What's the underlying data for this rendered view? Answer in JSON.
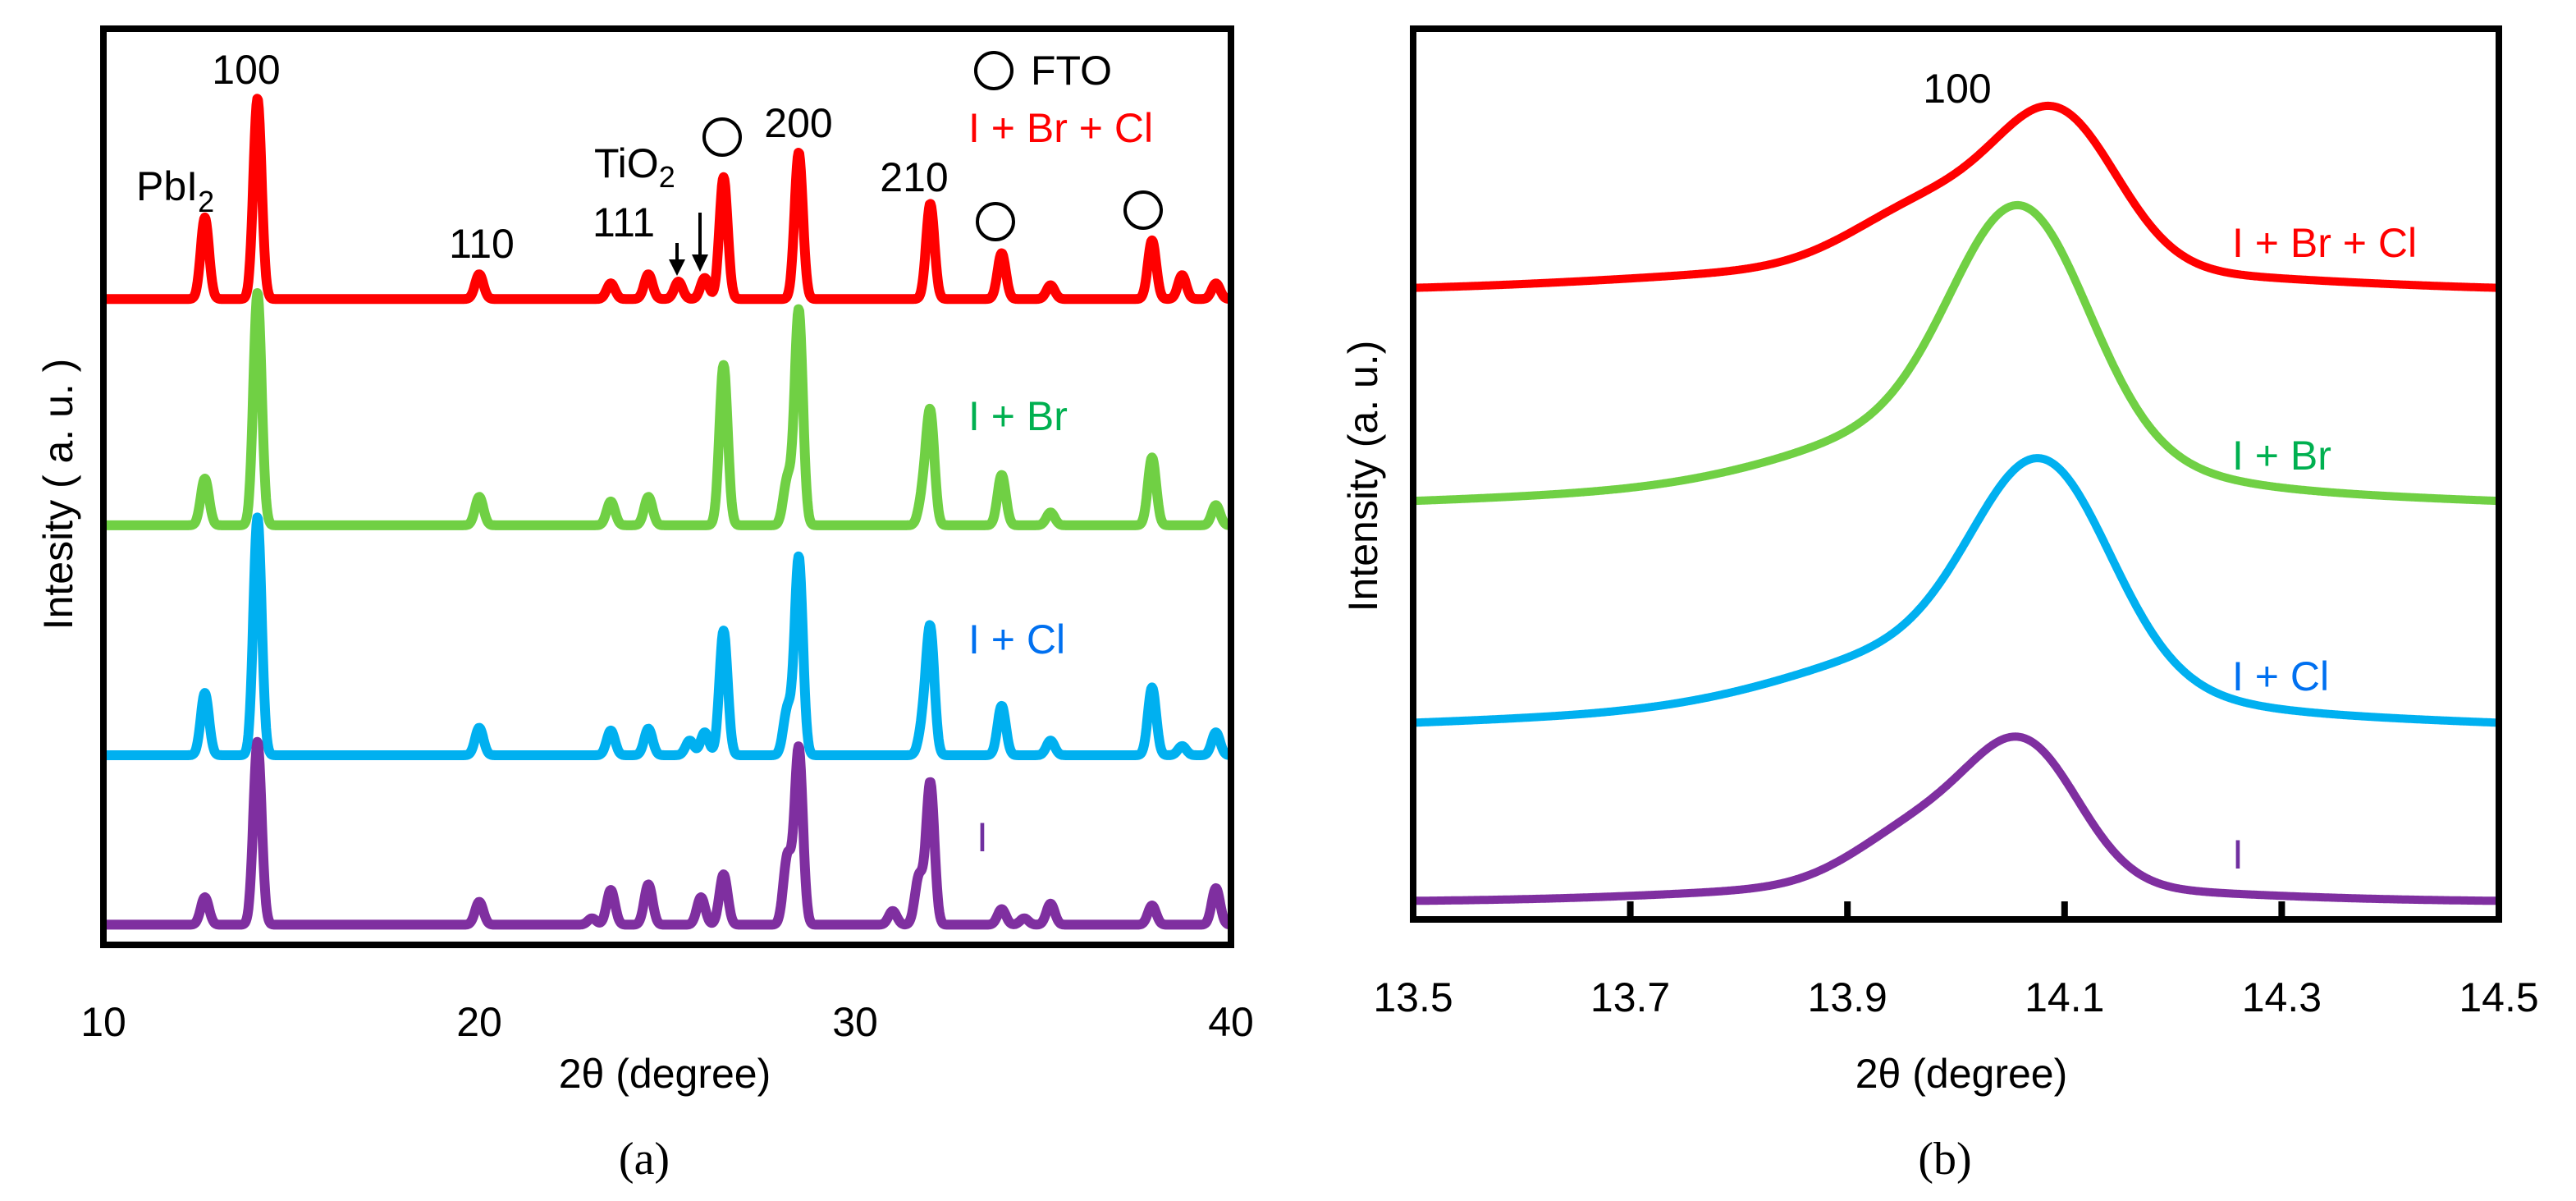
{
  "chart_data": [
    {
      "type": "line",
      "panel": "(a)",
      "xlabel": "2θ (degree)",
      "ylabel": "Intesity ( a. u. )",
      "xlim": [
        10,
        40
      ],
      "ylim": [
        0,
        100
      ],
      "xticks": [
        "10",
        "20",
        "30",
        "40"
      ],
      "grid": false,
      "annotations": {
        "pbi2": "PbI",
        "pbi2_sub": "2",
        "p100": "100",
        "p110": "110",
        "tio2": "TiO",
        "tio2_sub": "2",
        "p111": "111",
        "p200": "200",
        "p210": "210",
        "fto": "FTO"
      },
      "peak_width_deg": 0.11,
      "series": [
        {
          "name": "I + Br + Cl",
          "color": "#ff0000",
          "label_color": "#ff0000",
          "baseline": 70.5,
          "peaks": [
            [
              12.7,
              8.9
            ],
            [
              14.1,
              21.9
            ],
            [
              20.0,
              2.7
            ],
            [
              23.5,
              1.7
            ],
            [
              24.5,
              2.7
            ],
            [
              25.3,
              1.9
            ],
            [
              26.0,
              2.3
            ],
            [
              26.5,
              13.3
            ],
            [
              28.5,
              16
            ],
            [
              32.0,
              10.4
            ],
            [
              33.9,
              5
            ],
            [
              35.2,
              1.5
            ],
            [
              37.9,
              6.4
            ],
            [
              38.7,
              2.6
            ],
            [
              39.6,
              1.7
            ]
          ]
        },
        {
          "name": "I + Br",
          "color": "#70d044",
          "label_color": "#00b050",
          "baseline": 45.8,
          "peaks": [
            [
              12.7,
              5.1
            ],
            [
              14.1,
              25.4
            ],
            [
              20.0,
              3.1
            ],
            [
              23.5,
              2.6
            ],
            [
              24.5,
              3.1
            ],
            [
              26.5,
              17.5
            ],
            [
              28.2,
              5
            ],
            [
              28.5,
              23.5
            ],
            [
              31.8,
              3
            ],
            [
              32.0,
              12.1
            ],
            [
              33.9,
              5.5
            ],
            [
              35.2,
              1.4
            ],
            [
              37.9,
              7.4
            ],
            [
              39.6,
              2.2
            ]
          ]
        },
        {
          "name": "I + Cl",
          "color": "#00b0f0",
          "label_color": "#0070f0",
          "baseline": 20.7,
          "peaks": [
            [
              12.7,
              6.8
            ],
            [
              14.1,
              26
            ],
            [
              20.0,
              3
            ],
            [
              23.5,
              2.7
            ],
            [
              24.5,
              2.9
            ],
            [
              25.6,
              1.6
            ],
            [
              26.0,
              2.5
            ],
            [
              26.5,
              13.6
            ],
            [
              28.2,
              5
            ],
            [
              28.5,
              21.6
            ],
            [
              31.8,
              3
            ],
            [
              32.0,
              13.6
            ],
            [
              33.9,
              5.4
            ],
            [
              35.2,
              1.6
            ],
            [
              37.9,
              7.4
            ],
            [
              38.7,
              1
            ],
            [
              39.6,
              2.5
            ]
          ]
        },
        {
          "name": "I",
          "color": "#7f2fa0",
          "label_color": "#7030a0",
          "baseline": 2.2,
          "peaks": [
            [
              12.7,
              3
            ],
            [
              14.1,
              20
            ],
            [
              20.0,
              2.5
            ],
            [
              23.0,
              0.7
            ],
            [
              23.5,
              3.8
            ],
            [
              24.5,
              4.4
            ],
            [
              25.9,
              3
            ],
            [
              26.5,
              5.5
            ],
            [
              28.2,
              7.4
            ],
            [
              28.5,
              19.3
            ],
            [
              31.0,
              1.5
            ],
            [
              31.7,
              5.2
            ],
            [
              32.0,
              15.5
            ],
            [
              33.9,
              1.7
            ],
            [
              34.5,
              0.7
            ],
            [
              35.2,
              2.3
            ],
            [
              37.9,
              2.1
            ],
            [
              39.6,
              4
            ]
          ]
        }
      ]
    },
    {
      "type": "line",
      "panel": "(b)",
      "xlabel": "2θ (degree)",
      "ylabel": "Intensity (a. u.)",
      "xlim": [
        13.5,
        14.5
      ],
      "ylim": [
        0,
        100
      ],
      "xticks": [
        "13.5",
        "13.7",
        "13.9",
        "14.1",
        "14.3",
        "14.5"
      ],
      "grid": false,
      "annotations": {
        "p100": "100"
      },
      "series": [
        {
          "name": "I + Br + Cl",
          "color": "#ff0000",
          "label_color": "#ff0000",
          "baseline": 70.5,
          "peaks": [
            [
              14.095,
              16,
              0.055
            ],
            [
              13.98,
              7,
              0.07
            ],
            [
              14.0,
              3,
              0.25
            ]
          ]
        },
        {
          "name": "I + Br",
          "color": "#70d044",
          "label_color": "#00b050",
          "baseline": 45.9,
          "peaks": [
            [
              14.06,
              25,
              0.062
            ],
            [
              14.0,
              7,
              0.13
            ],
            [
              14.0,
              3,
              0.35
            ]
          ]
        },
        {
          "name": "I + Cl",
          "color": "#00b0f0",
          "label_color": "#0070f0",
          "baseline": 21.0,
          "peaks": [
            [
              14.08,
              22,
              0.062
            ],
            [
              14.0,
              7,
              0.13
            ],
            [
              14.0,
              3,
              0.35
            ]
          ]
        },
        {
          "name": "I",
          "color": "#7f2fa0",
          "label_color": "#7030a0",
          "baseline": 2.0,
          "peaks": [
            [
              14.065,
              14.5,
              0.05
            ],
            [
              13.97,
              6.5,
              0.06
            ],
            [
              14.0,
              2,
              0.2
            ]
          ]
        }
      ]
    }
  ]
}
